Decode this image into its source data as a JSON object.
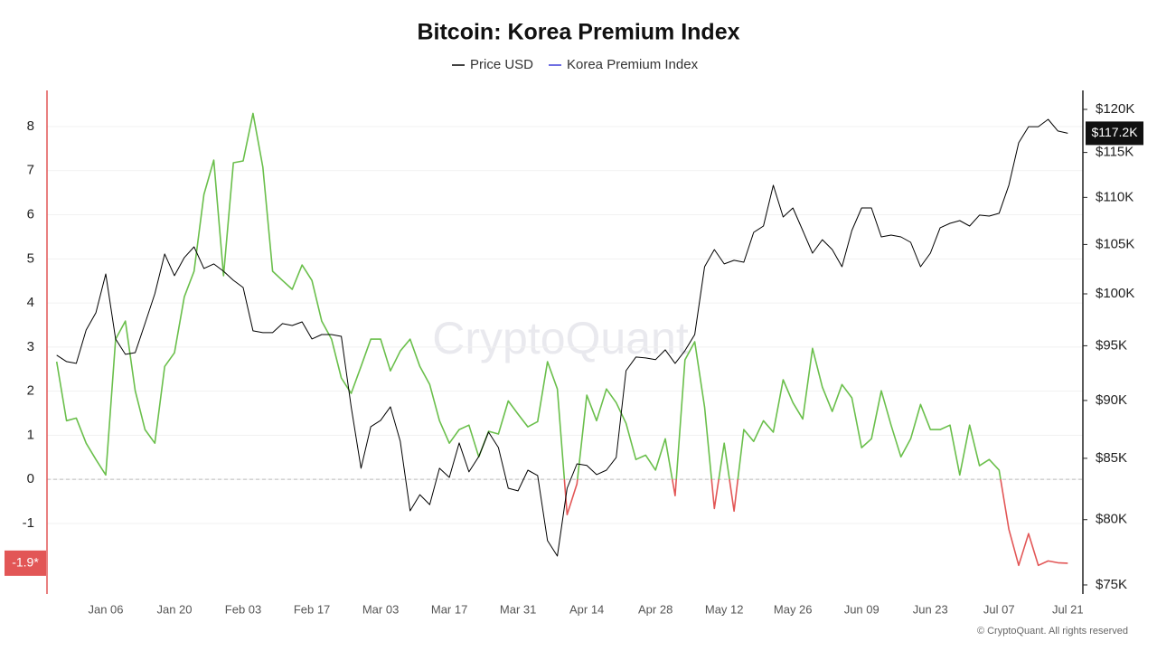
{
  "chart_data": {
    "type": "line",
    "title": "Bitcoin: Korea Premium Index",
    "watermark": "CryptoQuant",
    "copyright": "© CryptoQuant. All rights reserved",
    "categories": [
      null,
      null,
      null,
      null,
      null,
      "Jan 06",
      null,
      null,
      null,
      null,
      null,
      null,
      "Jan 20",
      null,
      null,
      null,
      null,
      null,
      null,
      "Feb 03",
      null,
      null,
      null,
      null,
      null,
      null,
      "Feb 17",
      null,
      null,
      null,
      null,
      null,
      null,
      "Mar 03",
      null,
      null,
      null,
      null,
      null,
      null,
      "Mar 17",
      null,
      null,
      null,
      null,
      null,
      null,
      "Mar 31",
      null,
      null,
      null,
      null,
      null,
      null,
      "Apr 14",
      null,
      null,
      null,
      null,
      null,
      null,
      "Apr 28",
      null,
      null,
      null,
      null,
      null,
      null,
      "May 12",
      null,
      null,
      null,
      null,
      null,
      null,
      "May 26",
      null,
      null,
      null,
      null,
      null,
      null,
      "Jun 09",
      null,
      null,
      null,
      null,
      null,
      null,
      "Jun 23",
      null,
      null,
      null,
      null,
      null,
      null,
      "Jul 07",
      null,
      null,
      null,
      null,
      null,
      null,
      "Jul 21"
    ],
    "series": [
      {
        "name": "Price USD",
        "color": "#000000",
        "axis": "y2",
        "last_label": "$117.2K",
        "values": [
          94120,
          93530,
          93360,
          96490,
          98150,
          101990,
          95640,
          94200,
          94360,
          97100,
          100010,
          104020,
          101810,
          103650,
          104760,
          102540,
          103000,
          102260,
          101350,
          100630,
          96410,
          96240,
          96240,
          97100,
          96920,
          97270,
          95640,
          96060,
          96060,
          95890,
          89440,
          84170,
          87700,
          88250,
          89440,
          86450,
          80700,
          82000,
          81200,
          84170,
          83410,
          86300,
          83870,
          85150,
          87230,
          85910,
          82520,
          82310,
          84010,
          83570,
          78360,
          77170,
          82520,
          84540,
          84400,
          83640,
          84010,
          85070,
          92690,
          93950,
          93860,
          93700,
          94620,
          93360,
          94540,
          96060,
          102720,
          104480,
          103000,
          103370,
          103180,
          106270,
          106930,
          111330,
          107890,
          108860,
          106460,
          104100,
          105500,
          104480,
          102720,
          106460,
          108860,
          108860,
          105790,
          105980,
          105790,
          105230,
          102720,
          104100,
          106750,
          107220,
          107510,
          106930,
          108090,
          107990,
          108290,
          111330,
          116100,
          117970,
          117970,
          118820,
          117460,
          117200
        ]
      },
      {
        "name": "Korea Premium Index",
        "color": "#3d3dd8",
        "positive_color": "#6abf4b",
        "negative_color": "#e25656",
        "last_label": "-1.9*",
        "values": [
          2.67,
          1.33,
          1.39,
          0.82,
          0.45,
          0.1,
          3.18,
          3.59,
          2.01,
          1.13,
          0.82,
          2.56,
          2.87,
          4.14,
          4.72,
          6.46,
          7.24,
          4.62,
          7.18,
          7.22,
          8.3,
          7.08,
          4.72,
          4.51,
          4.31,
          4.86,
          4.51,
          3.59,
          3.18,
          2.3,
          1.95,
          2.56,
          3.18,
          3.18,
          2.46,
          2.91,
          3.18,
          2.56,
          2.15,
          1.33,
          0.82,
          1.13,
          1.23,
          0.51,
          1.09,
          1.03,
          1.78,
          1.48,
          1.19,
          1.31,
          2.67,
          2.05,
          -0.8,
          -0.1,
          1.91,
          1.33,
          2.05,
          1.74,
          1.27,
          0.45,
          0.55,
          0.21,
          0.92,
          -0.37,
          2.71,
          3.12,
          1.64,
          -0.66,
          0.82,
          -0.72,
          1.13,
          0.86,
          1.33,
          1.07,
          2.26,
          1.74,
          1.37,
          2.97,
          2.09,
          1.54,
          2.15,
          1.85,
          0.72,
          0.92,
          2.01,
          1.23,
          0.51,
          0.92,
          1.7,
          1.13,
          1.13,
          1.23,
          0.1,
          1.23,
          0.31,
          0.45,
          0.21,
          -1.13,
          -1.95,
          -1.23,
          -1.95,
          -1.85,
          -1.89,
          -1.9
        ]
      }
    ],
    "ylim": [
      -2.6,
      8.82
    ],
    "yticks": [
      -1,
      0,
      1,
      2,
      3,
      4,
      5,
      6,
      7,
      8
    ],
    "y2lim": [
      74330,
      122270
    ],
    "y2log": true,
    "y2ticks": [
      {
        "value": 75000,
        "label": "$75K"
      },
      {
        "value": 80000,
        "label": "$80K"
      },
      {
        "value": 85000,
        "label": "$85K"
      },
      {
        "value": 90000,
        "label": "$90K"
      },
      {
        "value": 95000,
        "label": "$95K"
      },
      {
        "value": 100000,
        "label": "$100K"
      },
      {
        "value": 105000,
        "label": "$105K"
      },
      {
        "value": 110000,
        "label": "$110K"
      },
      {
        "value": 115000,
        "label": "$115K"
      },
      {
        "value": 120000,
        "label": "$120K"
      }
    ],
    "grid": true
  }
}
